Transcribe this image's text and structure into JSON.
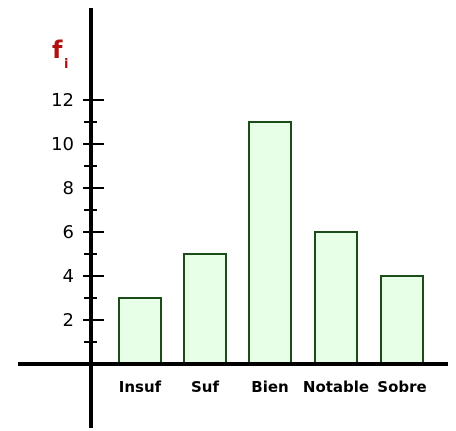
{
  "chart_data": {
    "type": "bar",
    "categories": [
      "Insuf",
      "Suf",
      "Bien",
      "Notable",
      "Sobre"
    ],
    "values": [
      3,
      5,
      11,
      6,
      4
    ],
    "ylabel_main": "f",
    "ylabel_sub": "i",
    "xlabel": "",
    "ylim": [
      0,
      12
    ],
    "yticks": [
      "2",
      "4",
      "6",
      "8",
      "10",
      "12"
    ],
    "minor_tick_step": 1,
    "grid": false,
    "bar_fill": "#e6ffe6",
    "bar_stroke": "#1a4d1a",
    "axis_color": "#000000",
    "ylabel_color": "#b01010"
  }
}
